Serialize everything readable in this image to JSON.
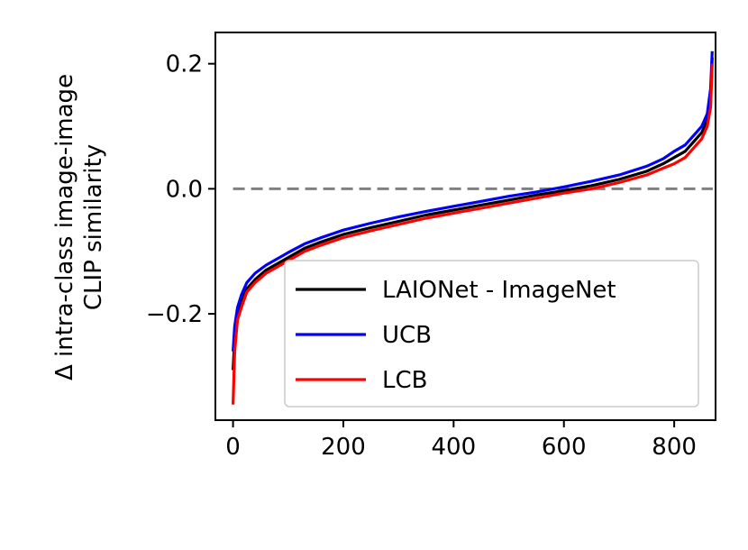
{
  "chart_data": {
    "type": "line",
    "title": "",
    "xlabel": "",
    "ylabel_lines": [
      "Δ intra-class image-image",
      "CLIP similarity"
    ],
    "xlim": [
      -32,
      875
    ],
    "ylim": [
      -0.37,
      0.25
    ],
    "xticks": [
      0,
      200,
      400,
      600,
      800
    ],
    "xtick_labels": [
      "0",
      "200",
      "400",
      "600",
      "800"
    ],
    "yticks": [
      -0.2,
      0.0,
      0.2
    ],
    "ytick_labels": [
      "−0.2",
      "0.0",
      "0.2"
    ],
    "grid": false,
    "legend_position": "lower-right",
    "reference_line": {
      "y": 0.0,
      "color": "#808080",
      "style": "dashed"
    },
    "series": [
      {
        "name": "LAIONet - ImageNet",
        "color": "#000000",
        "x": [
          0,
          3,
          8,
          15,
          25,
          40,
          60,
          80,
          100,
          130,
          160,
          200,
          250,
          300,
          350,
          400,
          450,
          500,
          550,
          600,
          650,
          700,
          750,
          780,
          800,
          820,
          840,
          850,
          860,
          866,
          869
        ],
        "y": [
          -0.29,
          -0.24,
          -0.2,
          -0.18,
          -0.16,
          -0.145,
          -0.13,
          -0.12,
          -0.11,
          -0.095,
          -0.085,
          -0.073,
          -0.062,
          -0.052,
          -0.042,
          -0.034,
          -0.026,
          -0.018,
          -0.01,
          -0.003,
          0.005,
          0.015,
          0.028,
          0.04,
          0.05,
          0.06,
          0.08,
          0.09,
          0.11,
          0.14,
          0.21
        ]
      },
      {
        "name": "UCB",
        "color": "#0000ff",
        "x": [
          0,
          3,
          8,
          15,
          25,
          40,
          60,
          80,
          100,
          130,
          160,
          200,
          250,
          300,
          350,
          400,
          450,
          500,
          550,
          600,
          650,
          700,
          750,
          780,
          800,
          820,
          840,
          850,
          860,
          866,
          869
        ],
        "y": [
          -0.26,
          -0.22,
          -0.19,
          -0.17,
          -0.15,
          -0.135,
          -0.122,
          -0.112,
          -0.102,
          -0.088,
          -0.078,
          -0.066,
          -0.055,
          -0.045,
          -0.036,
          -0.028,
          -0.02,
          -0.012,
          -0.005,
          0.003,
          0.012,
          0.022,
          0.036,
          0.048,
          0.06,
          0.07,
          0.09,
          0.1,
          0.12,
          0.16,
          0.22
        ]
      },
      {
        "name": "LCB",
        "color": "#ff0000",
        "x": [
          0,
          3,
          8,
          15,
          25,
          40,
          60,
          80,
          100,
          130,
          160,
          200,
          250,
          300,
          350,
          400,
          450,
          500,
          550,
          600,
          650,
          700,
          750,
          780,
          800,
          820,
          840,
          850,
          860,
          866,
          869
        ],
        "y": [
          -0.345,
          -0.26,
          -0.21,
          -0.19,
          -0.165,
          -0.15,
          -0.135,
          -0.125,
          -0.115,
          -0.1,
          -0.09,
          -0.078,
          -0.067,
          -0.057,
          -0.047,
          -0.039,
          -0.031,
          -0.023,
          -0.015,
          -0.007,
          0.0,
          0.01,
          0.022,
          0.033,
          0.04,
          0.05,
          0.07,
          0.08,
          0.1,
          0.13,
          0.2
        ]
      }
    ]
  }
}
